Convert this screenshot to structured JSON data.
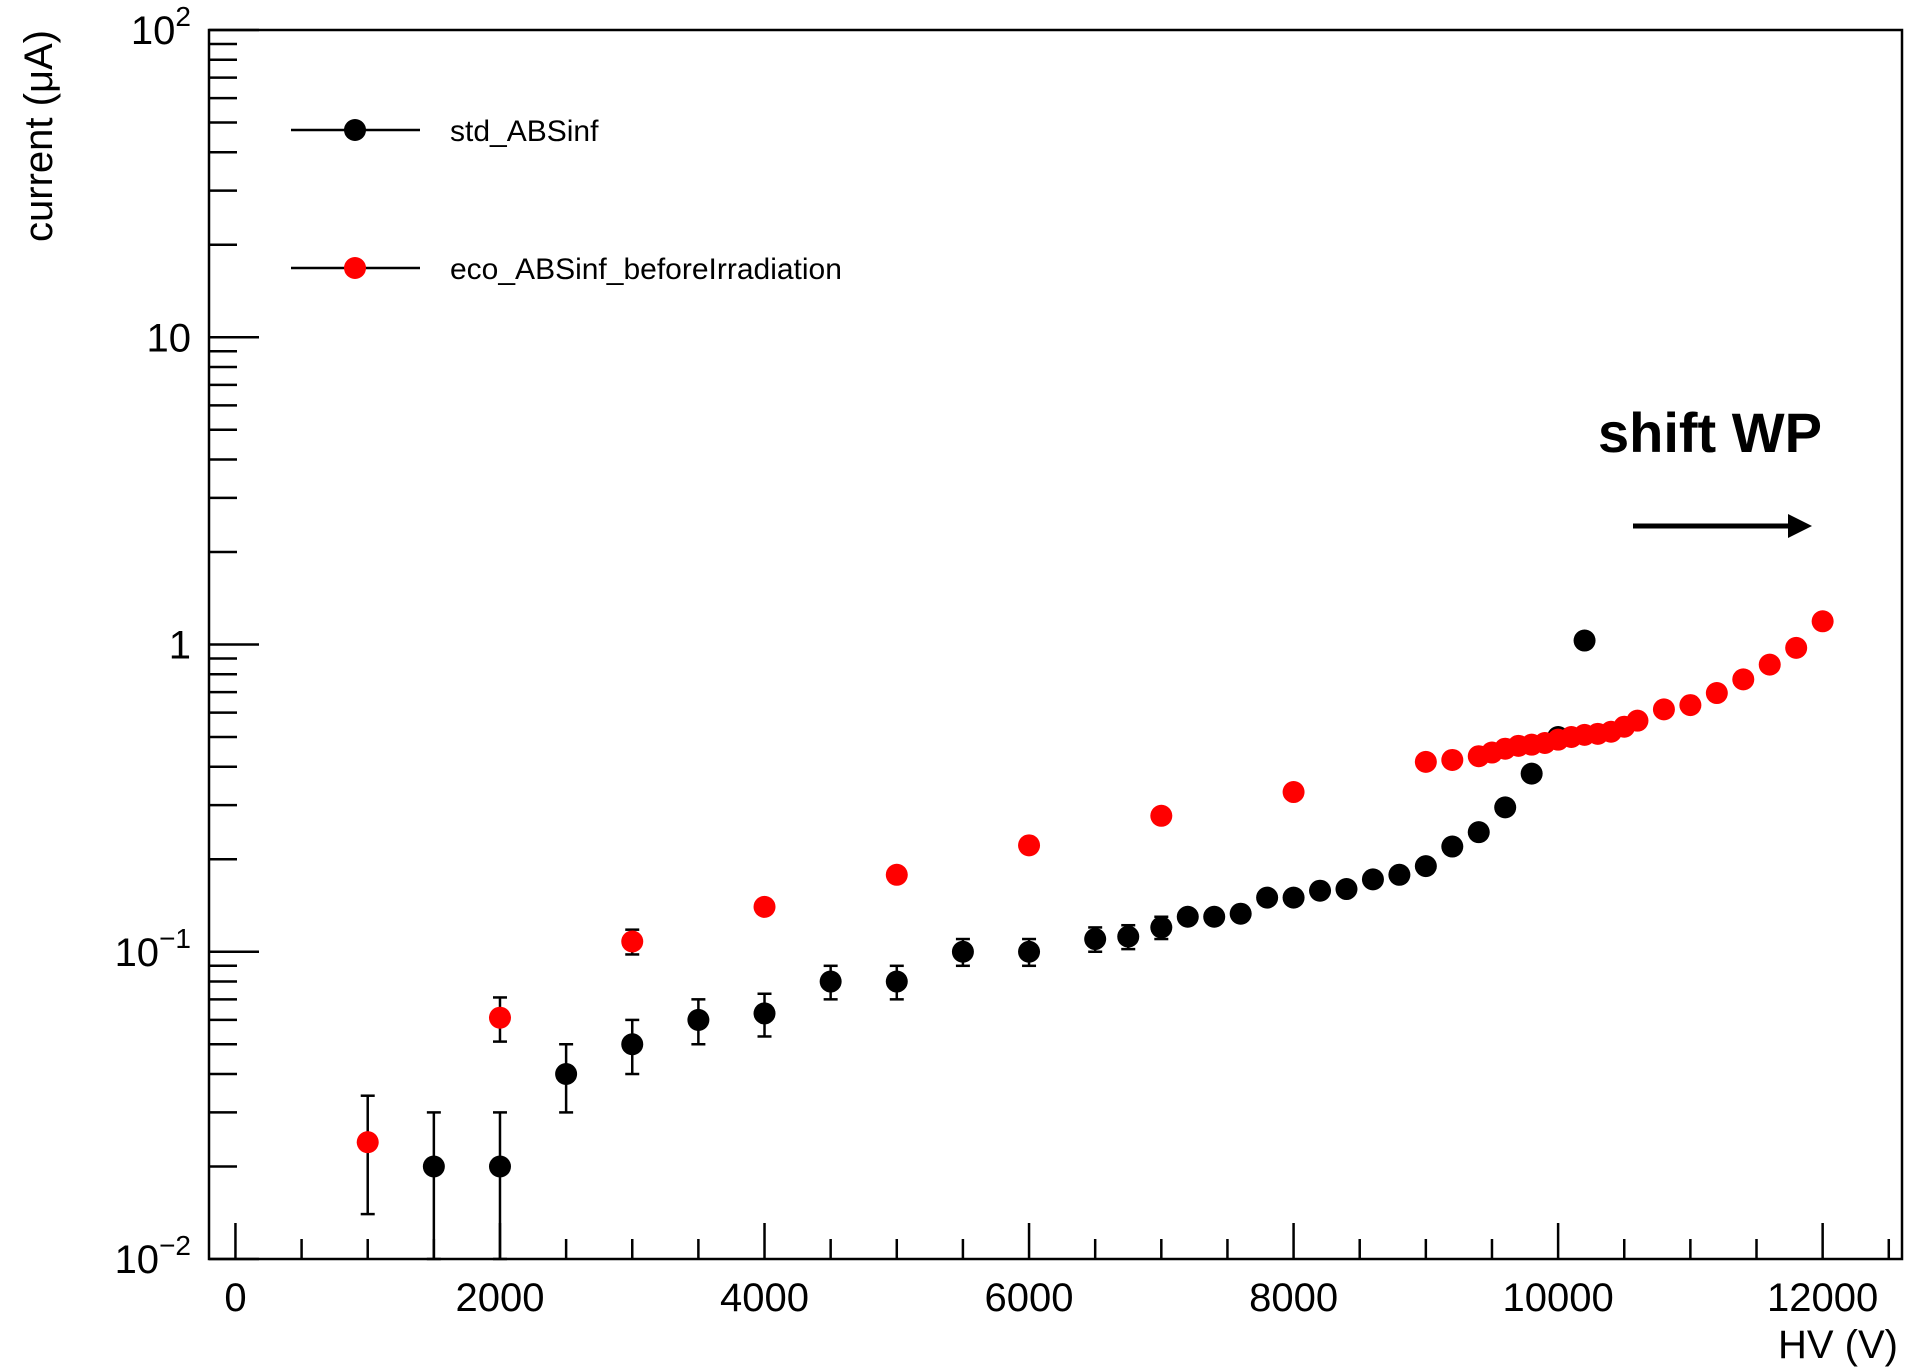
{
  "chart_data": {
    "type": "scatter",
    "title": "",
    "xlabel": "HV (V)",
    "ylabel": "current (μA)",
    "xlim": [
      -200,
      12600
    ],
    "ylim": [
      0.01,
      100
    ],
    "yscale": "log",
    "grid": false,
    "x_ticks": [
      0,
      2000,
      4000,
      6000,
      8000,
      10000,
      12000
    ],
    "x_tick_labels": [
      "0",
      "2000",
      "4000",
      "6000",
      "8000",
      "10000",
      "12000"
    ],
    "y_ticks": [
      0.01,
      0.1,
      1,
      10,
      100
    ],
    "y_tick_labels": [
      {
        "base": "10",
        "exp": "−2"
      },
      {
        "base": "10",
        "exp": "−1"
      },
      {
        "base": "1",
        "exp": ""
      },
      {
        "base": "10",
        "exp": ""
      },
      {
        "base": "10",
        "exp": "2"
      }
    ],
    "legend_position": "top-left",
    "series": [
      {
        "name": "std_ABSinf",
        "color": "#000000",
        "points": [
          {
            "x": 1500,
            "y": 0.02,
            "err": 0.01
          },
          {
            "x": 2000,
            "y": 0.02,
            "err": 0.01
          },
          {
            "x": 2500,
            "y": 0.04,
            "err": 0.01
          },
          {
            "x": 3000,
            "y": 0.05,
            "err": 0.01
          },
          {
            "x": 3500,
            "y": 0.06,
            "err": 0.01
          },
          {
            "x": 4000,
            "y": 0.063,
            "err": 0.01
          },
          {
            "x": 4500,
            "y": 0.08,
            "err": 0.01
          },
          {
            "x": 5000,
            "y": 0.08,
            "err": 0.01
          },
          {
            "x": 5500,
            "y": 0.1,
            "err": 0.01
          },
          {
            "x": 6000,
            "y": 0.1,
            "err": 0.01
          },
          {
            "x": 6500,
            "y": 0.11,
            "err": 0.01
          },
          {
            "x": 6750,
            "y": 0.112,
            "err": 0.01
          },
          {
            "x": 7000,
            "y": 0.12,
            "err": 0.01
          },
          {
            "x": 7200,
            "y": 0.13,
            "err": 0
          },
          {
            "x": 7400,
            "y": 0.13,
            "err": 0
          },
          {
            "x": 7600,
            "y": 0.133,
            "err": 0
          },
          {
            "x": 7800,
            "y": 0.15,
            "err": 0
          },
          {
            "x": 8000,
            "y": 0.15,
            "err": 0
          },
          {
            "x": 8200,
            "y": 0.158,
            "err": 0
          },
          {
            "x": 8400,
            "y": 0.16,
            "err": 0
          },
          {
            "x": 8600,
            "y": 0.172,
            "err": 0
          },
          {
            "x": 8800,
            "y": 0.178,
            "err": 0
          },
          {
            "x": 9000,
            "y": 0.19,
            "err": 0
          },
          {
            "x": 9200,
            "y": 0.22,
            "err": 0
          },
          {
            "x": 9400,
            "y": 0.245,
            "err": 0
          },
          {
            "x": 9600,
            "y": 0.295,
            "err": 0
          },
          {
            "x": 9800,
            "y": 0.38,
            "err": 0
          },
          {
            "x": 10000,
            "y": 0.5,
            "err": 0
          },
          {
            "x": 10200,
            "y": 1.03,
            "err": 0
          }
        ]
      },
      {
        "name": "eco_ABSinf_beforeIrradiation",
        "color": "#ff0000",
        "points": [
          {
            "x": 1000,
            "y": 0.024,
            "err": 0.01
          },
          {
            "x": 2000,
            "y": 0.061,
            "err": 0.01
          },
          {
            "x": 3000,
            "y": 0.108,
            "err": 0.01
          },
          {
            "x": 4000,
            "y": 0.14,
            "err": 0
          },
          {
            "x": 5000,
            "y": 0.178,
            "err": 0
          },
          {
            "x": 6000,
            "y": 0.222,
            "err": 0
          },
          {
            "x": 7000,
            "y": 0.277,
            "err": 0
          },
          {
            "x": 8000,
            "y": 0.331,
            "err": 0
          },
          {
            "x": 9000,
            "y": 0.415,
            "err": 0
          },
          {
            "x": 9200,
            "y": 0.421,
            "err": 0
          },
          {
            "x": 9400,
            "y": 0.433,
            "err": 0
          },
          {
            "x": 9500,
            "y": 0.445,
            "err": 0
          },
          {
            "x": 9600,
            "y": 0.458,
            "err": 0
          },
          {
            "x": 9700,
            "y": 0.468,
            "err": 0
          },
          {
            "x": 9800,
            "y": 0.472,
            "err": 0
          },
          {
            "x": 9900,
            "y": 0.478,
            "err": 0
          },
          {
            "x": 10000,
            "y": 0.49,
            "err": 0
          },
          {
            "x": 10100,
            "y": 0.5,
            "err": 0
          },
          {
            "x": 10200,
            "y": 0.508,
            "err": 0
          },
          {
            "x": 10300,
            "y": 0.512,
            "err": 0
          },
          {
            "x": 10400,
            "y": 0.52,
            "err": 0
          },
          {
            "x": 10500,
            "y": 0.54,
            "err": 0
          },
          {
            "x": 10600,
            "y": 0.565,
            "err": 0
          },
          {
            "x": 10800,
            "y": 0.615,
            "err": 0
          },
          {
            "x": 11000,
            "y": 0.635,
            "err": 0
          },
          {
            "x": 11200,
            "y": 0.695,
            "err": 0
          },
          {
            "x": 11400,
            "y": 0.77,
            "err": 0
          },
          {
            "x": 11600,
            "y": 0.86,
            "err": 0
          },
          {
            "x": 11800,
            "y": 0.975,
            "err": 0
          },
          {
            "x": 12000,
            "y": 1.19,
            "err": 0
          }
        ]
      }
    ],
    "annotations": [
      {
        "text": "shift WP",
        "arrow": "right"
      }
    ]
  }
}
